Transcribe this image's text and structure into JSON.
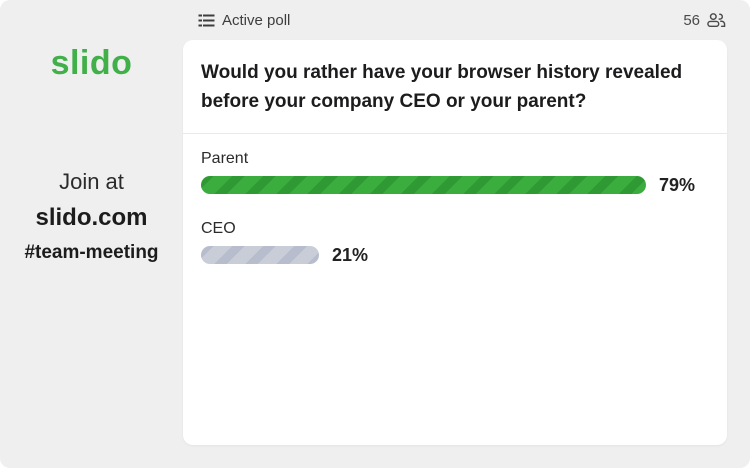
{
  "app": {
    "logo_text": "slido",
    "brand_green": "#41b049"
  },
  "sidebar": {
    "join_label": "Join at",
    "join_url": "slido.com",
    "event_hash": "#team-meeting"
  },
  "header": {
    "title": "Active poll",
    "participants_count": "56",
    "icons": {
      "left": "poll-list-icon",
      "right": "participants-people-icon"
    }
  },
  "poll": {
    "question": "Would you rather have your browser history revealed before your company CEO or your parent?",
    "options": [
      {
        "label": "Parent",
        "value": 79,
        "percent_label": "79%",
        "color": "#3bad3f",
        "stripe_color": "#2f9a33"
      },
      {
        "label": "CEO",
        "value": 21,
        "percent_label": "21%",
        "color": "#c9cdd8",
        "stripe_color": "#b7bdcc"
      }
    ]
  },
  "colors": {
    "background": "#efefef",
    "card": "#ffffff",
    "text_dark": "#1c1c1e"
  }
}
